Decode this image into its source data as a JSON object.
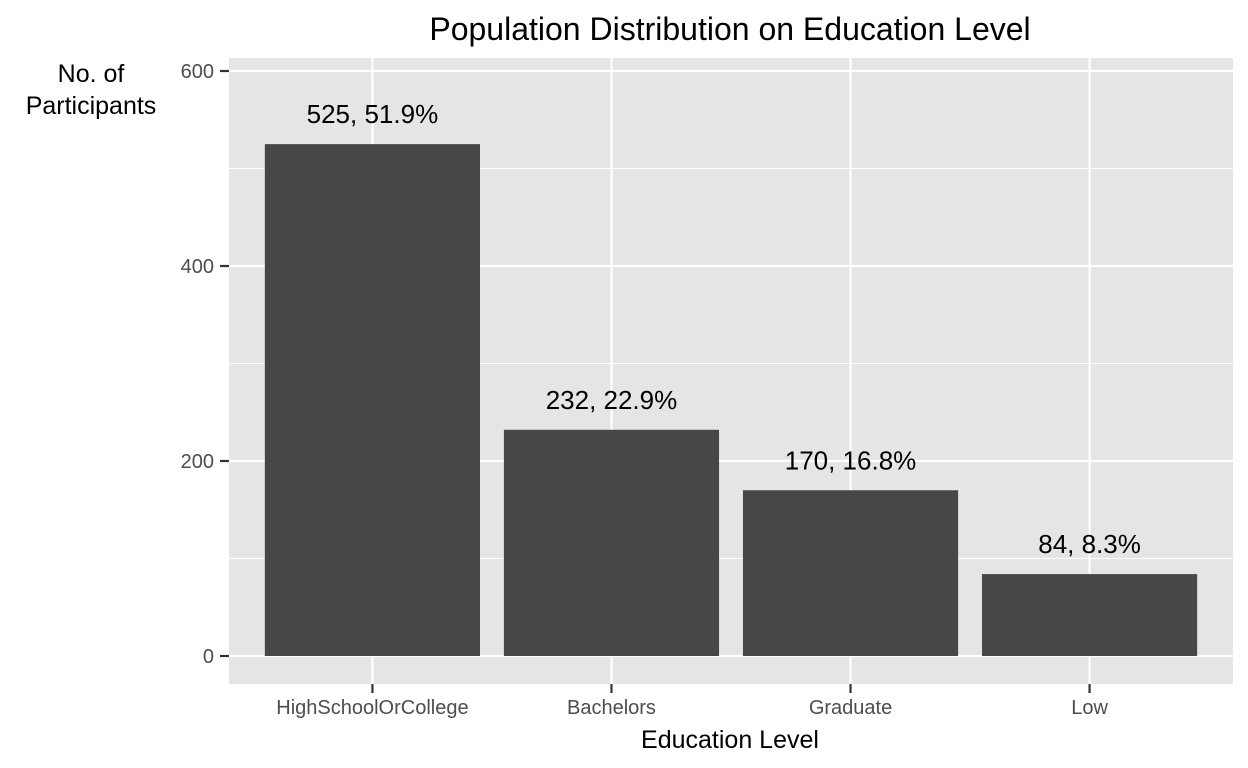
{
  "chart_data": {
    "type": "bar",
    "title": "Population Distribution on Education Level",
    "xlabel": "Education Level",
    "ylabel_lines": [
      "No. of",
      "Participants"
    ],
    "categories": [
      "HighSchoolOrCollege",
      "Bachelors",
      "Graduate",
      "Low"
    ],
    "values": [
      525,
      232,
      170,
      84
    ],
    "data_labels": [
      "525, 51.9%",
      "232, 22.9%",
      "170, 16.8%",
      "84, 8.3%"
    ],
    "y_ticks": [
      0,
      200,
      400,
      600
    ],
    "y_tick_labels": [
      "0",
      "200",
      "400",
      "600"
    ],
    "ylim": [
      0,
      600
    ],
    "grid": true,
    "legend": "none",
    "colors": {
      "bar": "#474747",
      "panel_background": "#e5e5e5",
      "grid": "#ffffff",
      "tick": "#333333"
    }
  }
}
